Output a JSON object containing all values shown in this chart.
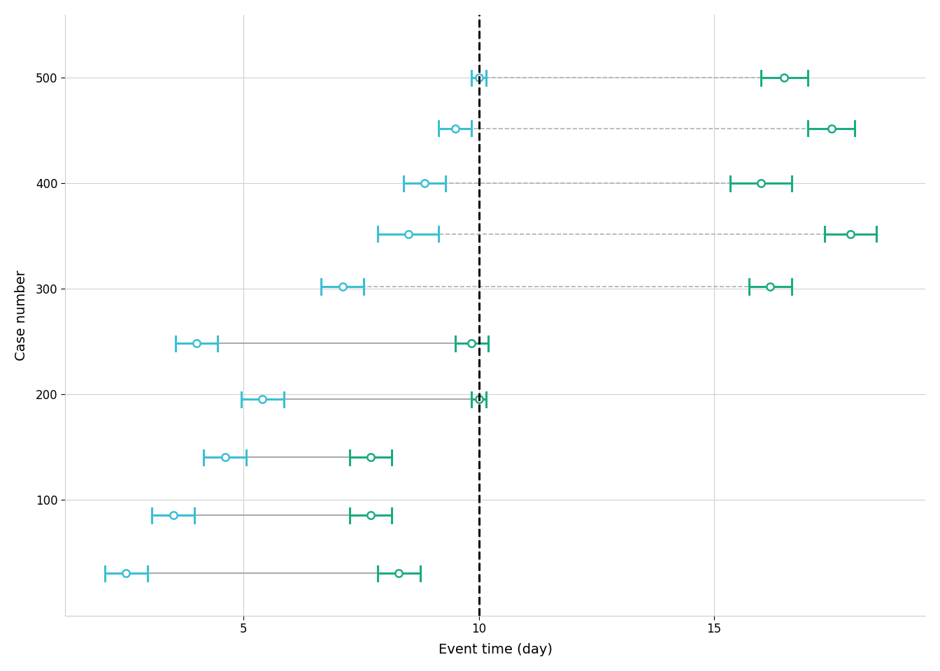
{
  "xlabel": "Event time (day)",
  "ylabel": "Case number",
  "xlim": [
    1.2,
    19.5
  ],
  "ylim": [
    -10,
    560
  ],
  "vline_x": 10,
  "background_color": "#ffffff",
  "grid_color": "#d0d0d0",
  "cases": [
    {
      "y": 30,
      "event1_x": 2.5,
      "event1_err": 0.45,
      "event2_x": 8.3,
      "event2_err": 0.45,
      "connector_style": "solid",
      "color1": "#3abfd4",
      "color2": "#1aab82"
    },
    {
      "y": 85,
      "event1_x": 3.5,
      "event1_err": 0.45,
      "event2_x": 7.7,
      "event2_err": 0.45,
      "connector_style": "solid",
      "color1": "#3abfd4",
      "color2": "#1aab82"
    },
    {
      "y": 140,
      "event1_x": 4.6,
      "event1_err": 0.45,
      "event2_x": 7.7,
      "event2_err": 0.45,
      "connector_style": "solid",
      "color1": "#3abfd4",
      "color2": "#1aab82"
    },
    {
      "y": 195,
      "event1_x": 5.4,
      "event1_err": 0.45,
      "event2_x": 10.0,
      "event2_err": 0.15,
      "connector_style": "solid",
      "color1": "#3abfd4",
      "color2": "#1aab82"
    },
    {
      "y": 248,
      "event1_x": 4.0,
      "event1_err": 0.45,
      "event2_x": 9.85,
      "event2_err": 0.35,
      "connector_style": "solid",
      "color1": "#3abfd4",
      "color2": "#1aab82"
    },
    {
      "y": 302,
      "event1_x": 7.1,
      "event1_err": 0.45,
      "event2_x": 16.2,
      "event2_err": 0.45,
      "connector_style": "dashed",
      "color1": "#3abfd4",
      "color2": "#1aab82"
    },
    {
      "y": 352,
      "event1_x": 8.5,
      "event1_err": 0.65,
      "event2_x": 17.9,
      "event2_err": 0.55,
      "connector_style": "dashed",
      "color1": "#3abfd4",
      "color2": "#1aab82"
    },
    {
      "y": 400,
      "event1_x": 8.85,
      "event1_err": 0.45,
      "event2_x": 16.0,
      "event2_err": 0.65,
      "connector_style": "dashed",
      "color1": "#3abfd4",
      "color2": "#1aab82"
    },
    {
      "y": 452,
      "event1_x": 9.5,
      "event1_err": 0.35,
      "event2_x": 17.5,
      "event2_err": 0.5,
      "connector_style": "dashed",
      "color1": "#3abfd4",
      "color2": "#1aab82"
    },
    {
      "y": 500,
      "event1_x": 10.0,
      "event1_err": 0.15,
      "event2_x": 16.5,
      "event2_err": 0.5,
      "connector_style": "dashed",
      "color1": "#3abfd4",
      "color2": "#1aab82"
    }
  ],
  "yticks": [
    100,
    200,
    300,
    400,
    500
  ],
  "xticks": [
    5,
    10,
    15
  ]
}
